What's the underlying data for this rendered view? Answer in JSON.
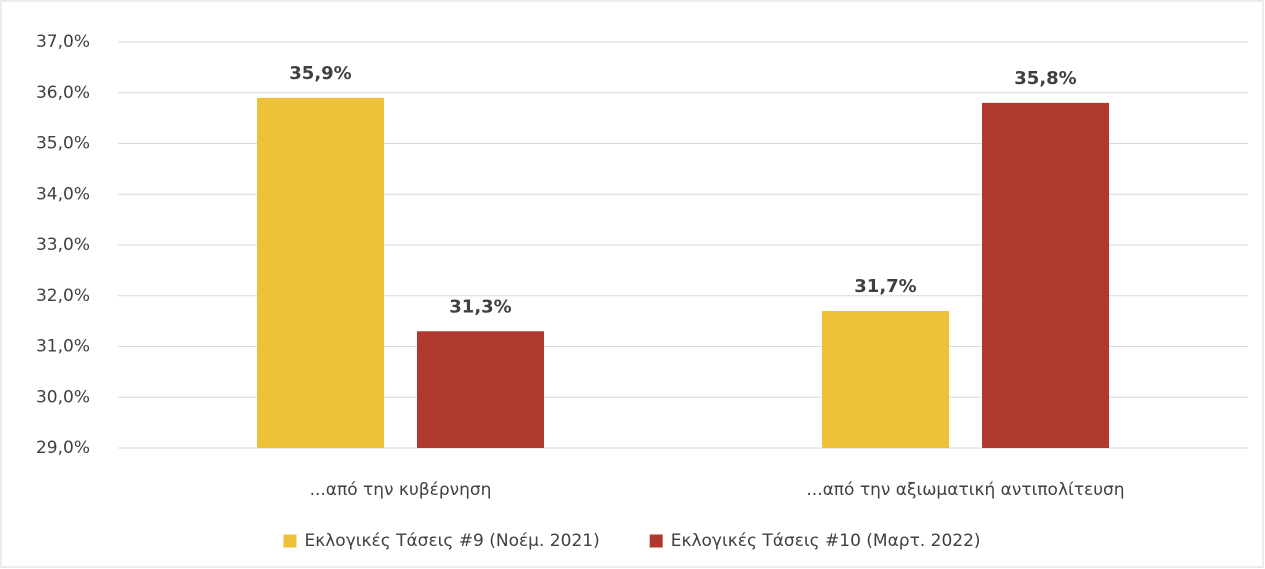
{
  "chart_data": {
    "type": "bar",
    "categories": [
      "...από την κυβέρνηση",
      "...από την αξιωματική αντιπολίτευση"
    ],
    "series": [
      {
        "name": "Εκλογικές Τάσεις #9 (Νοέμ. 2021)",
        "color": "#edc13a",
        "values": [
          35.9,
          31.7
        ],
        "value_labels": [
          "35,9%",
          "31,7%"
        ]
      },
      {
        "name": "Εκλογικές Τάσεις #10 (Μαρτ. 2022)",
        "color": "#b0392e",
        "values": [
          31.3,
          35.8
        ],
        "value_labels": [
          "31,3%",
          "35,8%"
        ]
      }
    ],
    "ylim": [
      29,
      37
    ],
    "yticks": [
      {
        "value": 29,
        "label": "29,0%"
      },
      {
        "value": 30,
        "label": "30,0%"
      },
      {
        "value": 31,
        "label": "31,0%"
      },
      {
        "value": 32,
        "label": "32,0%"
      },
      {
        "value": 33,
        "label": "33,0%"
      },
      {
        "value": 34,
        "label": "34,0%"
      },
      {
        "value": 35,
        "label": "35,0%"
      },
      {
        "value": 36,
        "label": "36,0%"
      },
      {
        "value": 37,
        "label": "37,0%"
      }
    ],
    "grid": true,
    "legend": "bottom"
  }
}
